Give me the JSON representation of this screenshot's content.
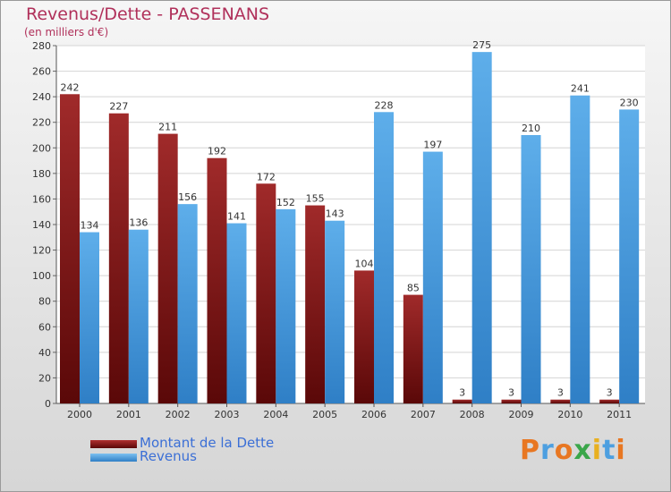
{
  "header": {
    "title": "Revenus/Dette - PASSENANS",
    "subtitle": "(en milliers d'€)"
  },
  "legend": [
    {
      "label": "Montant de la Dette",
      "color": "#7a1010"
    },
    {
      "label": "Revenus",
      "color": "#4d9fe0"
    }
  ],
  "logo": {
    "text": "Proxiti",
    "colors": [
      "#e87722",
      "#4d9fe0",
      "#e87722",
      "#3aa64a",
      "#e8b020",
      "#4d9fe0",
      "#e87722"
    ]
  },
  "chart_data": {
    "type": "bar",
    "title": "Revenus/Dette - PASSENANS",
    "subtitle": "(en milliers d'€)",
    "categories": [
      "2000",
      "2001",
      "2002",
      "2003",
      "2004",
      "2005",
      "2006",
      "2007",
      "2008",
      "2009",
      "2010",
      "2011"
    ],
    "series": [
      {
        "name": "Montant de la Dette",
        "color": "#7a1010",
        "values": [
          242,
          227,
          211,
          192,
          172,
          155,
          104,
          85,
          3,
          3,
          3,
          3
        ]
      },
      {
        "name": "Revenus",
        "color": "#4d9fe0",
        "values": [
          134,
          136,
          156,
          141,
          152,
          143,
          228,
          197,
          275,
          210,
          241,
          230
        ]
      }
    ],
    "ylim": [
      0,
      280
    ],
    "yticks": [
      0,
      20,
      40,
      60,
      80,
      100,
      120,
      140,
      160,
      180,
      200,
      220,
      240,
      260,
      280
    ],
    "grid": true,
    "legend_position": "bottom-left"
  }
}
